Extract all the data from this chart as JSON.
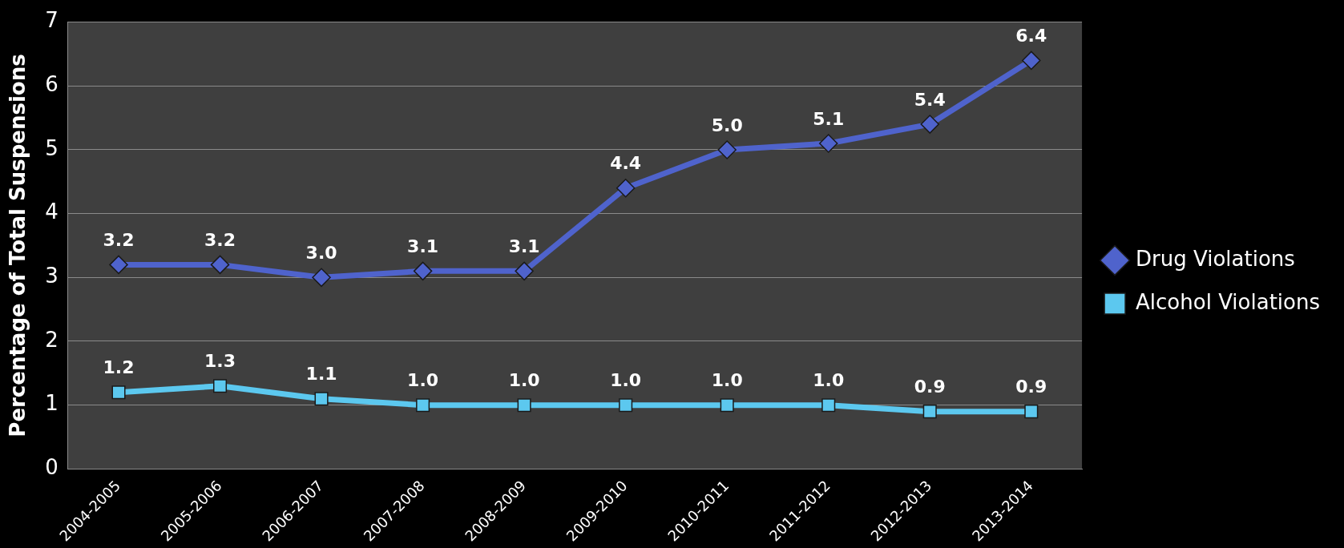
{
  "chart_data": {
    "type": "line",
    "ylabel": "Percentage of Total Suspensions",
    "categories": [
      "2004-2005",
      "2005-2006",
      "2006-2007",
      "2007-2008",
      "2008-2009",
      "2009-2010",
      "2010-2011",
      "2011-2012",
      "2012-2013",
      "2013-2014"
    ],
    "series": [
      {
        "name": "Drug Violations",
        "color": "#4f63cc",
        "marker": "diamond",
        "values": [
          3.2,
          3.2,
          3.0,
          3.1,
          3.1,
          4.4,
          5.0,
          5.1,
          5.4,
          6.4
        ],
        "value_labels": [
          "3.2",
          "3.2",
          "3.0",
          "3.1",
          "3.1",
          "4.4",
          "5.0",
          "5.1",
          "5.4",
          "6.4"
        ]
      },
      {
        "name": "Alcohol Violations",
        "color": "#5cc8ef",
        "marker": "square",
        "values": [
          1.2,
          1.3,
          1.1,
          1.0,
          1.0,
          1.0,
          1.0,
          1.0,
          0.9,
          0.9
        ],
        "value_labels": [
          "1.2",
          "1.3",
          "1.1",
          "1.0",
          "1.0",
          "1.0",
          "1.0",
          "1.0",
          "0.9",
          "0.9"
        ]
      }
    ],
    "ylim": [
      0,
      7
    ],
    "yticks": [
      0,
      1,
      2,
      3,
      4,
      5,
      6,
      7
    ],
    "grid": "y",
    "legend": "right"
  }
}
